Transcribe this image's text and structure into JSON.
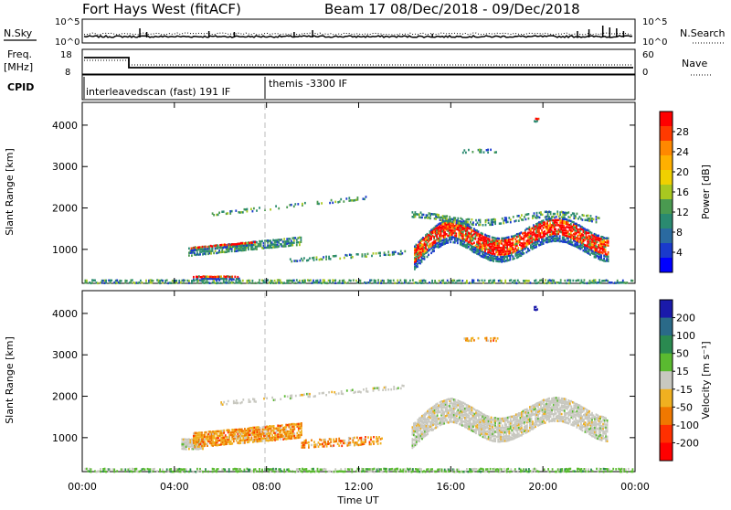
{
  "header": {
    "title": "Fort Hays West (fitACF)",
    "beam_date": "Beam 17  08/Dec/2018 - 09/Dec/2018"
  },
  "noise_panel": {
    "left_label": "N.Sky",
    "right_label": "N.Search",
    "left_ticks": [
      "10^5",
      "10^0"
    ],
    "right_ticks": [
      "10^5",
      "10^0"
    ]
  },
  "freq_panel": {
    "left_label_1": "Freq.",
    "left_label_2": "[MHz]",
    "right_label": "Nave",
    "left_ticks": [
      "18",
      "8"
    ],
    "right_ticks": [
      "60",
      "0"
    ]
  },
  "cpid_panel": {
    "label": "CPID",
    "segment_1": "interleavedscan (fast) 191 IF",
    "segment_2": "themis -3300 IF"
  },
  "chart_data": [
    {
      "type": "heatmap",
      "name": "power",
      "ylabel": "Slant Range [km]",
      "y_ticks": [
        "1000",
        "2000",
        "3000",
        "4000"
      ],
      "colorbar_label": "Power [dB]",
      "colorbar_ticks": [
        "28",
        "24",
        "20",
        "16",
        "12",
        "8",
        "4"
      ],
      "colorbar_colors": [
        "#ff0000",
        "#ff3a00",
        "#ff8800",
        "#ffb000",
        "#f0d000",
        "#a8c820",
        "#4a9a50",
        "#2a8a70",
        "#2a6aa0",
        "#1a3acc",
        "#0000ff"
      ]
    },
    {
      "type": "heatmap",
      "name": "velocity",
      "ylabel": "Slant Range [km]",
      "y_ticks": [
        "1000",
        "2000",
        "3000",
        "4000"
      ],
      "colorbar_label": "Velocity [m s⁻¹]",
      "colorbar_ticks": [
        "200",
        "100",
        "50",
        "15",
        "-15",
        "-50",
        "-100",
        "-200"
      ],
      "colorbar_colors": [
        "#1a1aaa",
        "#2a6a88",
        "#2a8a50",
        "#5aba30",
        "#c8c8c0",
        "#f0b020",
        "#f07800",
        "#ff3000",
        "#ff0000"
      ]
    }
  ],
  "time_axis": {
    "label": "Time UT",
    "ticks": [
      "00:00",
      "04:00",
      "08:00",
      "12:00",
      "16:00",
      "20:00",
      "00:00"
    ]
  }
}
